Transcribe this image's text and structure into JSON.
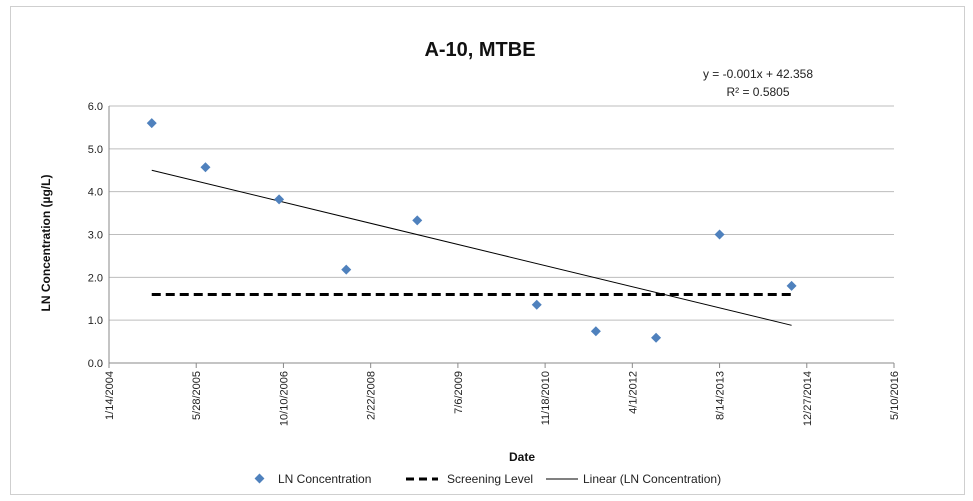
{
  "chart_data": {
    "type": "scatter",
    "title": "A-10, MTBE",
    "xlabel": "Date",
    "ylabel": "LN Concentration (µg/L)",
    "x_ticks": [
      "1/14/2004",
      "5/28/2005",
      "10/10/2006",
      "2/22/2008",
      "7/6/2009",
      "11/18/2010",
      "4/1/2012",
      "8/14/2013",
      "12/27/2014",
      "5/10/2016"
    ],
    "xlim": [
      "1/14/2004",
      "5/10/2016"
    ],
    "ylim": [
      0,
      6
    ],
    "y_ticks": [
      "0.0",
      "1.0",
      "2.0",
      "3.0",
      "4.0",
      "5.0",
      "6.0"
    ],
    "grid": "horizontal",
    "legend_position": "bottom",
    "series": [
      {
        "name": "LN Concentration",
        "kind": "scatter",
        "color": "#4F81BD",
        "marker": "diamond",
        "points": [
          {
            "x": "9/15/2004",
            "y": 5.6
          },
          {
            "x": "7/20/2005",
            "y": 4.57
          },
          {
            "x": "9/15/2006",
            "y": 3.82
          },
          {
            "x": "10/5/2007",
            "y": 2.18
          },
          {
            "x": "11/15/2008",
            "y": 3.33
          },
          {
            "x": "10/1/2010",
            "y": 1.36
          },
          {
            "x": "9/5/2011",
            "y": 0.74
          },
          {
            "x": "8/15/2012",
            "y": 0.59
          },
          {
            "x": "8/14/2013",
            "y": 3.0
          },
          {
            "x": "10/1/2014",
            "y": 1.8
          }
        ]
      },
      {
        "name": "Screening Level",
        "kind": "line",
        "style": "dashed",
        "color": "#000000",
        "points": [
          {
            "x": "9/15/2004",
            "y": 1.6
          },
          {
            "x": "10/1/2014",
            "y": 1.6
          }
        ]
      },
      {
        "name": "Linear (LN Concentration)",
        "kind": "line",
        "style": "solid",
        "color": "#000000",
        "points": [
          {
            "x": "9/15/2004",
            "y": 4.5
          },
          {
            "x": "10/1/2014",
            "y": 0.88
          }
        ]
      }
    ],
    "trendline_equation": "y = -0.001x + 42.358",
    "trendline_r2": "R² = 0.5805"
  }
}
